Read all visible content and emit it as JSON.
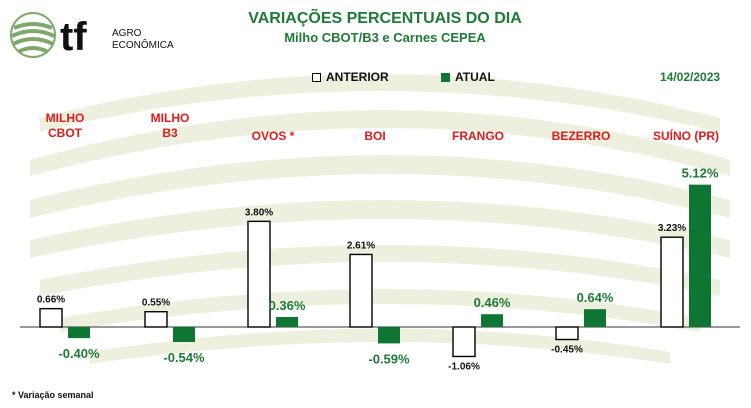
{
  "header": {
    "logo_text_main": "tf",
    "logo_text_line1": "AGRO",
    "logo_text_line2": "ECONÔMICA",
    "title": "VARIAÇÕES PERCENTUAIS DO DIA",
    "subtitle": "Milho CBOT/B3 e Carnes CEPEA",
    "date": "14/02/2023"
  },
  "footnote": "* Variação semanal",
  "colors": {
    "accent_green": "#1e7a35",
    "atual_bar": "#0e7532",
    "category_red": "#e01b1b",
    "atual_label": "#1e7a35",
    "anterior_label": "#111111"
  },
  "chart_data": {
    "type": "bar",
    "categories": [
      "MILHO\nCBOT",
      "MILHO\nB3",
      "OVOS *",
      "BOI",
      "FRANGO",
      "BEZERRO",
      "SUÍNO (PR)"
    ],
    "series": [
      {
        "name": "ANTERIOR",
        "values": [
          0.66,
          0.55,
          3.8,
          2.61,
          -1.06,
          -0.45,
          3.23
        ],
        "labels": [
          "0.66%",
          "0.55%",
          "3.80%",
          "2.61%",
          "-1.06%",
          "-0.45%",
          "3.23%"
        ]
      },
      {
        "name": "ATUAL",
        "values": [
          -0.4,
          -0.54,
          0.36,
          -0.59,
          0.46,
          0.64,
          5.12
        ],
        "labels": [
          "-0.40%",
          "-0.54%",
          "0.36%",
          "-0.59%",
          "0.46%",
          "0.64%",
          "5.12%"
        ]
      }
    ]
  }
}
